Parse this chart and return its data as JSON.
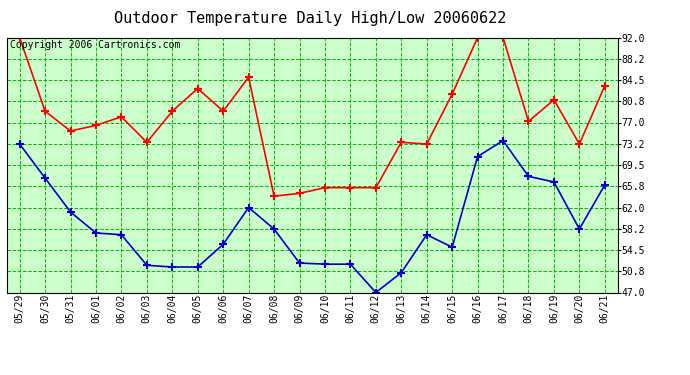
{
  "title": "Outdoor Temperature Daily High/Low 20060622",
  "copyright_text": "Copyright 2006 Cartronics.com",
  "x_labels": [
    "05/29",
    "05/30",
    "05/31",
    "06/01",
    "06/02",
    "06/03",
    "06/04",
    "06/05",
    "06/06",
    "06/07",
    "06/08",
    "06/09",
    "06/10",
    "06/11",
    "06/12",
    "06/13",
    "06/14",
    "06/15",
    "06/16",
    "06/17",
    "06/18",
    "06/19",
    "06/20",
    "06/21"
  ],
  "high_temps": [
    92.0,
    79.0,
    75.5,
    76.5,
    78.0,
    73.5,
    79.0,
    83.0,
    79.0,
    85.0,
    64.0,
    64.5,
    65.5,
    65.5,
    65.5,
    73.5,
    73.2,
    82.0,
    92.0,
    92.0,
    77.2,
    81.0,
    73.2,
    83.5
  ],
  "low_temps": [
    73.2,
    67.2,
    61.2,
    57.5,
    57.2,
    51.8,
    51.5,
    51.5,
    55.5,
    62.0,
    58.2,
    52.2,
    52.0,
    52.0,
    47.0,
    50.5,
    57.2,
    55.0,
    71.0,
    73.8,
    67.5,
    66.5,
    58.2,
    66.0
  ],
  "high_color": "#ff0000",
  "low_color": "#0000cc",
  "marker": "+",
  "marker_size": 6,
  "marker_edge_width": 1.5,
  "bg_color": "#ffffff",
  "plot_bg_color": "#ccffcc",
  "grid_color": "#00bb00",
  "border_color": "#000000",
  "y_min": 47.0,
  "y_max": 92.0,
  "y_ticks": [
    47.0,
    50.8,
    54.5,
    58.2,
    62.0,
    65.8,
    69.5,
    73.2,
    77.0,
    80.8,
    84.5,
    88.2,
    92.0
  ],
  "title_fontsize": 11,
  "copyright_fontsize": 7,
  "tick_fontsize": 7,
  "line_width": 1.2
}
